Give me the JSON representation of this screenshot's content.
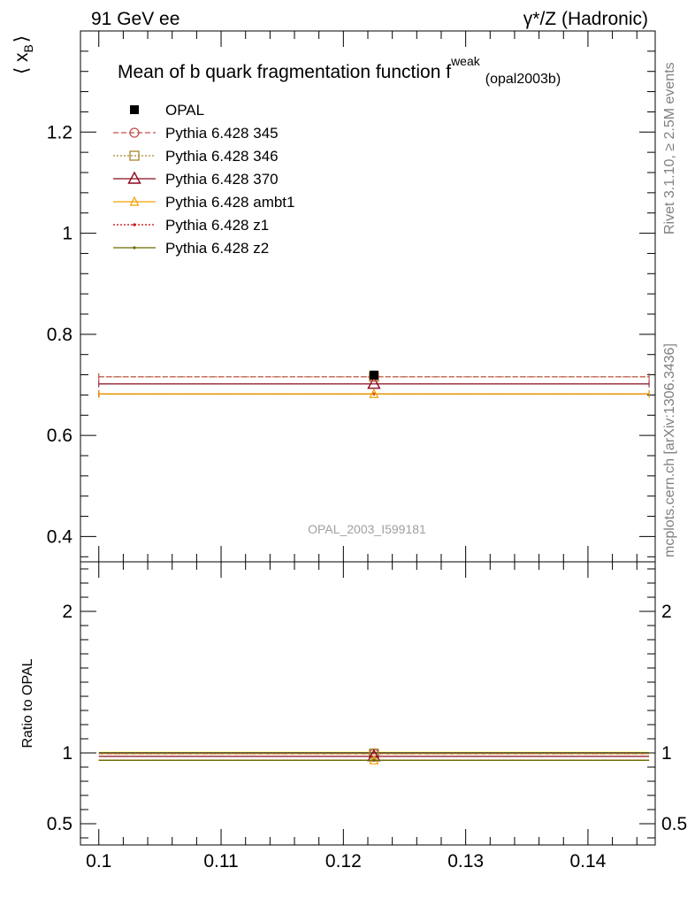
{
  "header": {
    "left": "91 GeV ee",
    "right": "γ*/Z (Hadronic)"
  },
  "side_labels": {
    "top": "Rivet 3.1.10, ≥ 2.5M events",
    "bottom": "mcplots.cern.ch [arXiv:1306.3436]"
  },
  "watermark": "OPAL_2003_I599181",
  "colors": {
    "OPAL": "#000000",
    "345": "#c0504d",
    "346": "#a8842c",
    "370": "#8b0a1e",
    "ambt1": "#f0a000",
    "z1": "#cc0000",
    "z2": "#6b6b00"
  },
  "chart_data": [
    {
      "type": "scatter",
      "title": "Mean of b quark fragmentation function f",
      "title_sup": "weak",
      "title_sub": "(opal2003b)",
      "ylabel": "⟨ x",
      "ylabel_sub": "B",
      "ylabel_end": "⟩",
      "xlim": [
        0.0985,
        0.1455
      ],
      "ylim": [
        0.35,
        1.4
      ],
      "yticks": [
        0.4,
        0.6,
        0.8,
        1.0,
        1.2
      ],
      "ytick_labels": [
        "0.4",
        "0.6",
        "0.8",
        "1",
        "1.2"
      ],
      "legend_position": "top-left",
      "series": [
        {
          "name": "OPAL",
          "key": "OPAL",
          "marker": "filled-square",
          "line": "none",
          "x": [
            0.1225
          ],
          "y": [
            0.7194
          ],
          "yerr": [
            0.008
          ]
        },
        {
          "name": "Pythia 6.428 345",
          "key": "345",
          "marker": "open-circle",
          "line": "dashed",
          "x": [
            0.1225
          ],
          "y": [
            0.716
          ],
          "xrange": [
            0.1,
            0.145
          ]
        },
        {
          "name": "Pythia 6.428 346",
          "key": "346",
          "marker": "open-square",
          "line": "dotted",
          "x": [
            0.1225
          ],
          "y": [
            0.716
          ],
          "xrange": [
            0.1,
            0.145
          ]
        },
        {
          "name": "Pythia 6.428 370",
          "key": "370",
          "marker": "open-triangle",
          "line": "solid",
          "x": [
            0.1225
          ],
          "y": [
            0.702
          ],
          "xrange": [
            0.1,
            0.145
          ]
        },
        {
          "name": "Pythia 6.428 ambt1",
          "key": "ambt1",
          "marker": "open-triangle-small",
          "line": "solid",
          "x": [
            0.1225
          ],
          "y": [
            0.682
          ],
          "xrange": [
            0.1,
            0.145
          ]
        },
        {
          "name": "Pythia 6.428 z1",
          "key": "z1",
          "marker": "dot",
          "line": "dotted",
          "x": [
            0.1225
          ],
          "y": [
            0.682
          ],
          "xrange": [
            0.1,
            0.145
          ]
        },
        {
          "name": "Pythia 6.428 z2",
          "key": "z2",
          "marker": "dot",
          "line": "solid",
          "x": [
            0.1225
          ],
          "y": [
            0.682
          ],
          "xrange": [
            0.1,
            0.145
          ]
        }
      ]
    },
    {
      "type": "scatter",
      "ylabel": "Ratio to OPAL",
      "xlim": [
        0.0985,
        0.1455
      ],
      "ylim": [
        0.35,
        2.35
      ],
      "xticks": [
        0.1,
        0.11,
        0.12,
        0.13,
        0.14
      ],
      "xtick_labels": [
        "0.1",
        "0.11",
        "0.12",
        "0.13",
        "0.14"
      ],
      "yticks": [
        0.5,
        1,
        2
      ],
      "ytick_labels": [
        "0.5",
        "1",
        "2"
      ],
      "series": [
        {
          "key": "OPAL",
          "y": [
            1.0
          ],
          "band": [
            0.989,
            1.011
          ]
        },
        {
          "key": "345",
          "y": [
            0.995
          ]
        },
        {
          "key": "346",
          "y": [
            0.995
          ]
        },
        {
          "key": "370",
          "y": [
            0.976
          ]
        },
        {
          "key": "ambt1",
          "y": [
            0.948
          ]
        },
        {
          "key": "z1",
          "y": [
            0.948
          ]
        },
        {
          "key": "z2",
          "y": [
            0.948
          ]
        }
      ]
    }
  ]
}
